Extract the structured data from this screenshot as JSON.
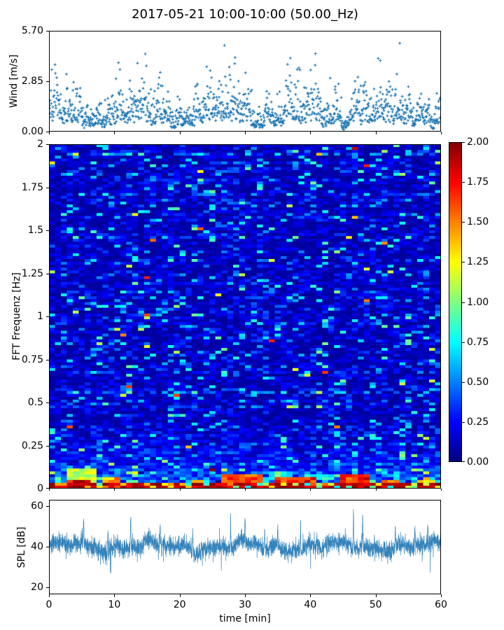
{
  "figure": {
    "title": "2017-05-21 10:00-10:00 (50.00_Hz)",
    "background": "#ffffff"
  },
  "chart_data": [
    {
      "id": "wind",
      "type": "scatter",
      "ylabel": "Wind [m/s]",
      "marker": "plus",
      "color": "#1f77b4",
      "xlim": [
        0,
        60
      ],
      "ylim": [
        0,
        5.7
      ],
      "yticks": [
        {
          "v": 0.0,
          "label": "0.00"
        },
        {
          "v": 2.85,
          "label": "2.85"
        },
        {
          "v": 5.7,
          "label": "5.70"
        }
      ],
      "xticks": [
        0,
        10,
        20,
        30,
        40,
        50,
        60
      ],
      "xtick_labels_visible": false,
      "n_points": 1250,
      "seed": 11,
      "base_mean": 1.4,
      "max_value": 5.7,
      "gusts": [
        [
          1.2,
          1.6,
          0.5
        ],
        [
          4.8,
          2.0,
          0.6
        ],
        [
          9.3,
          1.8,
          0.5
        ],
        [
          14.8,
          2.6,
          0.35
        ],
        [
          18.5,
          1.4,
          0.5
        ],
        [
          22.3,
          2.2,
          0.4
        ],
        [
          25.3,
          1.6,
          0.4
        ],
        [
          28.6,
          2.9,
          0.5
        ],
        [
          30.0,
          2.3,
          0.4
        ],
        [
          33.2,
          1.9,
          0.4
        ],
        [
          36.5,
          2.5,
          0.4
        ],
        [
          40.2,
          1.7,
          0.5
        ],
        [
          44.0,
          1.8,
          0.5
        ],
        [
          46.8,
          2.4,
          0.5
        ],
        [
          48.3,
          3.0,
          0.5
        ],
        [
          52.0,
          1.9,
          0.5
        ],
        [
          55.2,
          1.6,
          0.4
        ],
        [
          58.0,
          2.2,
          0.4
        ]
      ]
    },
    {
      "id": "spectrogram",
      "type": "heatmap",
      "ylabel": "FFT Frequenz [Hz]",
      "colormap": "jet",
      "clim": [
        0,
        2
      ],
      "xlim": [
        0,
        60
      ],
      "ylim": [
        0,
        2
      ],
      "yticks": [
        {
          "v": 0,
          "label": "0"
        },
        {
          "v": 0.25,
          "label": "0.25"
        },
        {
          "v": 0.5,
          "label": "0.5"
        },
        {
          "v": 0.75,
          "label": "0.75"
        },
        {
          "v": 1,
          "label": "1"
        },
        {
          "v": 1.25,
          "label": "1.25"
        },
        {
          "v": 1.5,
          "label": "1.5"
        },
        {
          "v": 1.75,
          "label": "1.75"
        },
        {
          "v": 2,
          "label": "2"
        }
      ],
      "colorbar_ticks": [
        {
          "v": 0.0,
          "label": "0.00"
        },
        {
          "v": 0.25,
          "label": "0.25"
        },
        {
          "v": 0.5,
          "label": "0.50"
        },
        {
          "v": 0.75,
          "label": "0.75"
        },
        {
          "v": 1.0,
          "label": "1.00"
        },
        {
          "v": 1.25,
          "label": "1.25"
        },
        {
          "v": 1.5,
          "label": "1.50"
        },
        {
          "v": 1.75,
          "label": "1.75"
        },
        {
          "v": 2.0,
          "label": "2.00"
        }
      ],
      "grid": {
        "cols": 66,
        "rows": 120
      },
      "seed": 7,
      "base_level": 0.16,
      "hot_regions": [
        {
          "t0": 2.8,
          "t1": 6.8,
          "fmax": 0.05,
          "boost": 2.0
        },
        {
          "t0": 2.5,
          "t1": 7.5,
          "fmax": 0.12,
          "boost": 1.25
        },
        {
          "t0": 8.5,
          "t1": 10.5,
          "fmax": 0.06,
          "boost": 1.6
        },
        {
          "t0": 21.5,
          "t1": 24.0,
          "fmax": 0.05,
          "boost": 1.5
        },
        {
          "t0": 26.5,
          "t1": 33.0,
          "fmax": 0.08,
          "boost": 1.8
        },
        {
          "t0": 34.5,
          "t1": 40.5,
          "fmax": 0.06,
          "boost": 1.9
        },
        {
          "t0": 44.5,
          "t1": 49.5,
          "fmax": 0.09,
          "boost": 1.9
        },
        {
          "t0": 50.5,
          "t1": 54.0,
          "fmax": 0.05,
          "boost": 1.6
        },
        {
          "t0": 56.0,
          "t1": 59.0,
          "fmax": 0.05,
          "boost": 1.5
        }
      ]
    },
    {
      "id": "spl",
      "type": "line",
      "ylabel": "SPL [dB]",
      "xlabel": "time [min]",
      "color": "#1f77b4",
      "xlim": [
        0,
        60
      ],
      "ylim": [
        16.6,
        63
      ],
      "yticks": [
        {
          "v": 20,
          "label": "20"
        },
        {
          "v": 40,
          "label": "40"
        },
        {
          "v": 60,
          "label": "60"
        }
      ],
      "xticks": [
        {
          "v": 0,
          "label": "0"
        },
        {
          "v": 10,
          "label": "10"
        },
        {
          "v": 20,
          "label": "20"
        },
        {
          "v": 30,
          "label": "30"
        },
        {
          "v": 40,
          "label": "40"
        },
        {
          "v": 50,
          "label": "50"
        },
        {
          "v": 60,
          "label": "60"
        }
      ],
      "n_points": 3600,
      "seed": 23,
      "mean_db": 40,
      "noise_sigma": 2.3,
      "spikes": [
        {
          "t": 5.3,
          "amp": 14
        },
        {
          "t": 9.0,
          "amp": 11
        },
        {
          "t": 12.5,
          "amp": 17
        },
        {
          "t": 17.0,
          "amp": 10
        },
        {
          "t": 22.0,
          "amp": 14
        },
        {
          "t": 27.8,
          "amp": 15
        },
        {
          "t": 30.0,
          "amp": 12
        },
        {
          "t": 33.0,
          "amp": 11
        },
        {
          "t": 35.0,
          "amp": 12
        },
        {
          "t": 38.5,
          "amp": 14
        },
        {
          "t": 41.0,
          "amp": 11
        },
        {
          "t": 46.6,
          "amp": 19
        },
        {
          "t": 48.0,
          "amp": 16
        },
        {
          "t": 53.0,
          "amp": 14
        },
        {
          "t": 56.0,
          "amp": 11
        },
        {
          "t": 58.0,
          "amp": 11
        }
      ]
    }
  ]
}
